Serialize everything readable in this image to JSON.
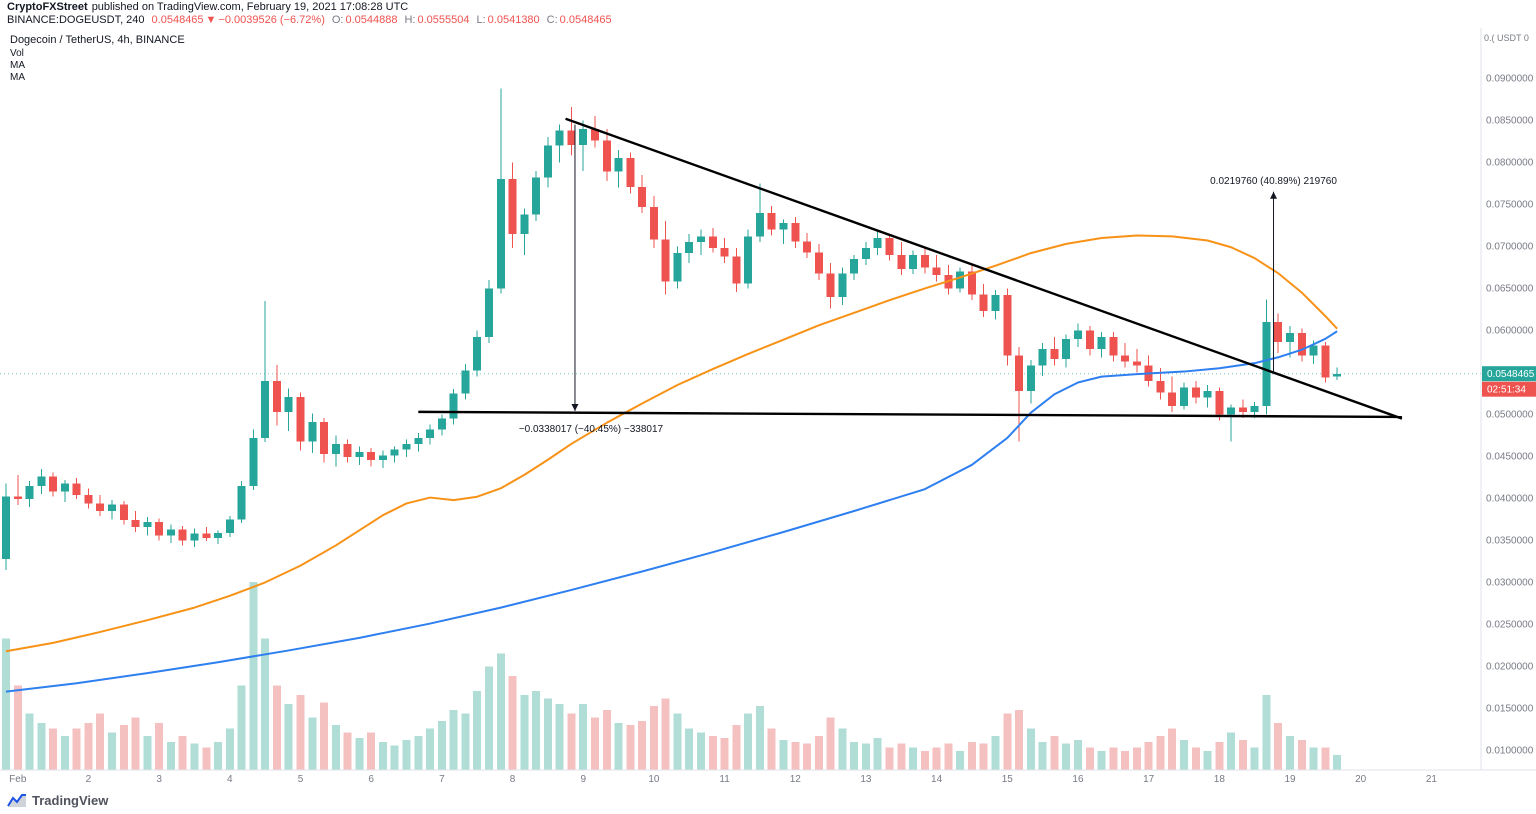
{
  "meta": {
    "author": "CryptoFXStreet",
    "published": "published on TradingView.com, February 19, 2021 17:08:28 UTC"
  },
  "header": {
    "symbol": "BINANCE:DOGEUSDT, 240",
    "last": "0.0548465",
    "dir": "▼",
    "change": "−0.0039526 (−6.72%)",
    "o_label": "O:",
    "o": "0.0544888",
    "h_label": "H:",
    "h": "0.0555504",
    "l_label": "L:",
    "l": "0.0541380",
    "c_label": "C:",
    "c": "0.0548465"
  },
  "legend": {
    "title": "Dogecoin / TetherUS, 4h, BINANCE",
    "vol": "Vol",
    "ma1": "MA",
    "ma2": "MA"
  },
  "price_marker": {
    "value": "0.0548465",
    "countdown": "02:51:34"
  },
  "axis": {
    "note": "0.( USDT 0",
    "price_ticks": [
      "0.0900000",
      "0.0850000",
      "0.0800000",
      "0.0750000",
      "0.0700000",
      "0.0650000",
      "0.0600000",
      "0.0500000",
      "0.0450000",
      "0.0400000",
      "0.0350000",
      "0.0300000",
      "0.0250000",
      "0.0200000",
      "0.0150000",
      "0.0100000"
    ],
    "time_labels": [
      [
        "Feb",
        1
      ],
      [
        "2",
        7
      ],
      [
        "3",
        13
      ],
      [
        "4",
        19
      ],
      [
        "5",
        25
      ],
      [
        "6",
        31
      ],
      [
        "7",
        37
      ],
      [
        "8",
        43
      ],
      [
        "9",
        49
      ],
      [
        "10",
        55
      ],
      [
        "11",
        61
      ],
      [
        "12",
        67
      ],
      [
        "13",
        73
      ],
      [
        "14",
        79
      ],
      [
        "15",
        85
      ],
      [
        "16",
        91
      ],
      [
        "17",
        97
      ],
      [
        "18",
        103
      ],
      [
        "19",
        109
      ],
      [
        "20",
        115
      ],
      [
        "21",
        121
      ]
    ]
  },
  "footer": {
    "brand": "TradingView"
  },
  "colors": {
    "up": "#26a69a",
    "down": "#ef5350",
    "vol_up": "#b0ddd6",
    "vol_down": "#f5c1c0",
    "ma_orange": "#f89217",
    "ma_blue": "#2e7ff0",
    "trendline": "#000000",
    "price_line": "#26a69a",
    "axis_text": "#787b86",
    "badge_price": "#26a69a",
    "badge_countdown": "#ef5350"
  },
  "chart_data": {
    "type": "candlestick",
    "title": "Dogecoin / TetherUS, 4h, BINANCE",
    "exchange": "BINANCE",
    "interval": "4h",
    "ylim": [
      0.0077,
      0.096
    ],
    "slots_per_day": 6,
    "current_price": 0.0548465,
    "last_candle": {
      "open": 0.0544888,
      "high": 0.0555504,
      "low": 0.054138,
      "close": 0.0548465
    },
    "columns": [
      "open",
      "high",
      "low",
      "close",
      "volume_rel"
    ],
    "candles": [
      [
        0.0328,
        0.0418,
        0.0315,
        0.0402,
        70
      ],
      [
        0.0402,
        0.0428,
        0.0392,
        0.0399,
        45
      ],
      [
        0.0399,
        0.0421,
        0.039,
        0.0415,
        30
      ],
      [
        0.0415,
        0.0435,
        0.0405,
        0.0426,
        25
      ],
      [
        0.0426,
        0.0431,
        0.0402,
        0.0408,
        22
      ],
      [
        0.0408,
        0.0422,
        0.0396,
        0.0418,
        18
      ],
      [
        0.0418,
        0.0424,
        0.0399,
        0.0404,
        22
      ],
      [
        0.0404,
        0.0412,
        0.0388,
        0.0394,
        25
      ],
      [
        0.0394,
        0.0404,
        0.0379,
        0.0385,
        30
      ],
      [
        0.0385,
        0.0398,
        0.0375,
        0.0393,
        20
      ],
      [
        0.0393,
        0.0397,
        0.0369,
        0.0374,
        24
      ],
      [
        0.0374,
        0.0385,
        0.036,
        0.0366,
        28
      ],
      [
        0.0366,
        0.0378,
        0.0356,
        0.0372,
        18
      ],
      [
        0.0372,
        0.0376,
        0.035,
        0.0356,
        25
      ],
      [
        0.0356,
        0.0369,
        0.0347,
        0.0363,
        15
      ],
      [
        0.0363,
        0.0367,
        0.0344,
        0.035,
        18
      ],
      [
        0.035,
        0.0364,
        0.0342,
        0.0358,
        14
      ],
      [
        0.0358,
        0.0366,
        0.0349,
        0.0353,
        12
      ],
      [
        0.0353,
        0.0362,
        0.0346,
        0.0359,
        15
      ],
      [
        0.0359,
        0.0379,
        0.0354,
        0.0375,
        22
      ],
      [
        0.0375,
        0.0421,
        0.0371,
        0.0415,
        45
      ],
      [
        0.0415,
        0.0482,
        0.041,
        0.0472,
        100
      ],
      [
        0.0472,
        0.0635,
        0.0467,
        0.054,
        70
      ],
      [
        0.054,
        0.0559,
        0.0487,
        0.0503,
        45
      ],
      [
        0.0503,
        0.0531,
        0.048,
        0.0521,
        35
      ],
      [
        0.0521,
        0.0526,
        0.0457,
        0.0468,
        40
      ],
      [
        0.0468,
        0.0501,
        0.0454,
        0.0491,
        28
      ],
      [
        0.0491,
        0.0496,
        0.0443,
        0.0453,
        36
      ],
      [
        0.0453,
        0.0475,
        0.0438,
        0.0465,
        24
      ],
      [
        0.0465,
        0.047,
        0.0443,
        0.0449,
        20
      ],
      [
        0.0449,
        0.0462,
        0.044,
        0.0455,
        17
      ],
      [
        0.0455,
        0.046,
        0.0438,
        0.0446,
        20
      ],
      [
        0.0446,
        0.0457,
        0.0436,
        0.0451,
        15
      ],
      [
        0.0451,
        0.0462,
        0.0443,
        0.0458,
        13
      ],
      [
        0.0458,
        0.047,
        0.0449,
        0.0465,
        16
      ],
      [
        0.0465,
        0.0478,
        0.0456,
        0.0472,
        18
      ],
      [
        0.0472,
        0.0488,
        0.0464,
        0.0482,
        22
      ],
      [
        0.0482,
        0.05,
        0.0475,
        0.0495,
        26
      ],
      [
        0.0495,
        0.053,
        0.0488,
        0.0525,
        32
      ],
      [
        0.0525,
        0.056,
        0.0518,
        0.0552,
        30
      ],
      [
        0.0552,
        0.06,
        0.0545,
        0.0592,
        42
      ],
      [
        0.0592,
        0.066,
        0.0585,
        0.065,
        55
      ],
      [
        0.065,
        0.0888,
        0.0644,
        0.078,
        62
      ],
      [
        0.078,
        0.08,
        0.0698,
        0.0715,
        50
      ],
      [
        0.0715,
        0.0745,
        0.069,
        0.0738,
        40
      ],
      [
        0.0738,
        0.079,
        0.073,
        0.0782,
        42
      ],
      [
        0.0782,
        0.083,
        0.077,
        0.082,
        38
      ],
      [
        0.082,
        0.0845,
        0.08,
        0.0838,
        35
      ],
      [
        0.0838,
        0.0866,
        0.0808,
        0.0821,
        30
      ],
      [
        0.0821,
        0.085,
        0.079,
        0.084,
        35
      ],
      [
        0.084,
        0.0855,
        0.0818,
        0.0826,
        28
      ],
      [
        0.0826,
        0.084,
        0.0778,
        0.0789,
        32
      ],
      [
        0.0789,
        0.0815,
        0.077,
        0.0805,
        25
      ],
      [
        0.0805,
        0.0812,
        0.0763,
        0.0771,
        24
      ],
      [
        0.0771,
        0.0785,
        0.074,
        0.0747,
        26
      ],
      [
        0.0747,
        0.076,
        0.0698,
        0.0708,
        34
      ],
      [
        0.0708,
        0.073,
        0.0643,
        0.0658,
        38
      ],
      [
        0.0658,
        0.07,
        0.065,
        0.0692,
        30
      ],
      [
        0.0692,
        0.0715,
        0.068,
        0.0705,
        22
      ],
      [
        0.0705,
        0.072,
        0.069,
        0.0712,
        20
      ],
      [
        0.0712,
        0.0722,
        0.0693,
        0.0698,
        18
      ],
      [
        0.0698,
        0.071,
        0.068,
        0.0688,
        17
      ],
      [
        0.0688,
        0.0698,
        0.0646,
        0.0656,
        24
      ],
      [
        0.0656,
        0.072,
        0.065,
        0.0712,
        30
      ],
      [
        0.0712,
        0.0775,
        0.0705,
        0.074,
        34
      ],
      [
        0.074,
        0.0748,
        0.0713,
        0.072,
        22
      ],
      [
        0.072,
        0.0732,
        0.0703,
        0.0728,
        16
      ],
      [
        0.0728,
        0.0735,
        0.0698,
        0.0706,
        15
      ],
      [
        0.0706,
        0.0716,
        0.0686,
        0.0693,
        14
      ],
      [
        0.0693,
        0.0703,
        0.066,
        0.0668,
        18
      ],
      [
        0.0668,
        0.068,
        0.0626,
        0.064,
        28
      ],
      [
        0.064,
        0.0675,
        0.063,
        0.0668,
        22
      ],
      [
        0.0668,
        0.069,
        0.066,
        0.0685,
        15
      ],
      [
        0.0685,
        0.0705,
        0.0678,
        0.0698,
        14
      ],
      [
        0.0698,
        0.0718,
        0.069,
        0.071,
        17
      ],
      [
        0.071,
        0.0715,
        0.0683,
        0.069,
        12
      ],
      [
        0.069,
        0.0705,
        0.0666,
        0.0673,
        14
      ],
      [
        0.0673,
        0.0695,
        0.0667,
        0.069,
        12
      ],
      [
        0.069,
        0.0698,
        0.0668,
        0.0675,
        10
      ],
      [
        0.0675,
        0.069,
        0.0658,
        0.0666,
        12
      ],
      [
        0.0666,
        0.0678,
        0.0643,
        0.065,
        14
      ],
      [
        0.065,
        0.0675,
        0.0645,
        0.067,
        10
      ],
      [
        0.067,
        0.0678,
        0.0636,
        0.0643,
        15
      ],
      [
        0.0643,
        0.0655,
        0.0616,
        0.0623,
        14
      ],
      [
        0.0623,
        0.0648,
        0.0613,
        0.0642,
        18
      ],
      [
        0.0642,
        0.065,
        0.0558,
        0.057,
        30
      ],
      [
        0.057,
        0.058,
        0.0468,
        0.0528,
        32
      ],
      [
        0.0528,
        0.0565,
        0.0513,
        0.0558,
        22
      ],
      [
        0.0558,
        0.0585,
        0.0546,
        0.0578,
        15
      ],
      [
        0.0578,
        0.0592,
        0.0558,
        0.0566,
        18
      ],
      [
        0.0566,
        0.0595,
        0.0556,
        0.059,
        14
      ],
      [
        0.059,
        0.0608,
        0.058,
        0.06,
        16
      ],
      [
        0.06,
        0.0605,
        0.057,
        0.0578,
        12
      ],
      [
        0.0578,
        0.0598,
        0.0568,
        0.0592,
        10
      ],
      [
        0.0592,
        0.0598,
        0.0563,
        0.057,
        12
      ],
      [
        0.057,
        0.0585,
        0.0556,
        0.0563,
        10
      ],
      [
        0.0563,
        0.0578,
        0.055,
        0.0558,
        12
      ],
      [
        0.0558,
        0.057,
        0.0533,
        0.054,
        15
      ],
      [
        0.054,
        0.0555,
        0.0518,
        0.0526,
        18
      ],
      [
        0.0526,
        0.0545,
        0.0503,
        0.051,
        22
      ],
      [
        0.051,
        0.0538,
        0.0506,
        0.0532,
        16
      ],
      [
        0.0532,
        0.054,
        0.0513,
        0.052,
        12
      ],
      [
        0.052,
        0.0535,
        0.0508,
        0.0528,
        10
      ],
      [
        0.0528,
        0.0532,
        0.0493,
        0.05,
        15
      ],
      [
        0.05,
        0.0512,
        0.0468,
        0.0508,
        20
      ],
      [
        0.0508,
        0.0518,
        0.0496,
        0.0503,
        16
      ],
      [
        0.0503,
        0.0515,
        0.0496,
        0.051,
        12
      ],
      [
        0.051,
        0.0637,
        0.05,
        0.061,
        40
      ],
      [
        0.061,
        0.062,
        0.0573,
        0.0586,
        25
      ],
      [
        0.0586,
        0.0605,
        0.0568,
        0.0597,
        18
      ],
      [
        0.0597,
        0.0602,
        0.0563,
        0.057,
        16
      ],
      [
        0.057,
        0.0588,
        0.056,
        0.0582,
        12
      ],
      [
        0.0582,
        0.0586,
        0.0538,
        0.0544,
        12
      ],
      [
        0.0545,
        0.0556,
        0.0541,
        0.0548,
        8
      ]
    ],
    "ma_orange": [
      [
        0,
        0.0218
      ],
      [
        4,
        0.0228
      ],
      [
        8,
        0.0241
      ],
      [
        12,
        0.0255
      ],
      [
        16,
        0.027
      ],
      [
        19,
        0.0284
      ],
      [
        22,
        0.03
      ],
      [
        25,
        0.032
      ],
      [
        28,
        0.0344
      ],
      [
        30,
        0.0362
      ],
      [
        32,
        0.038
      ],
      [
        34,
        0.0394
      ],
      [
        36,
        0.0401
      ],
      [
        38,
        0.0398
      ],
      [
        40,
        0.0402
      ],
      [
        42,
        0.0412
      ],
      [
        44,
        0.0428
      ],
      [
        46,
        0.0446
      ],
      [
        48,
        0.0465
      ],
      [
        51,
        0.049
      ],
      [
        54,
        0.0513
      ],
      [
        57,
        0.0535
      ],
      [
        60,
        0.0554
      ],
      [
        63,
        0.0572
      ],
      [
        66,
        0.0589
      ],
      [
        69,
        0.0606
      ],
      [
        72,
        0.0621
      ],
      [
        75,
        0.0636
      ],
      [
        78,
        0.065
      ],
      [
        81,
        0.0663
      ],
      [
        84,
        0.0677
      ],
      [
        87,
        0.0692
      ],
      [
        90,
        0.0703
      ],
      [
        93,
        0.071
      ],
      [
        96,
        0.0713
      ],
      [
        99,
        0.0712
      ],
      [
        102,
        0.0707
      ],
      [
        104,
        0.0699
      ],
      [
        106,
        0.0686
      ],
      [
        108,
        0.0668
      ],
      [
        110,
        0.0645
      ],
      [
        112,
        0.0617
      ],
      [
        113,
        0.0602
      ]
    ],
    "ma_blue": [
      [
        0,
        0.017
      ],
      [
        6,
        0.018
      ],
      [
        12,
        0.0192
      ],
      [
        18,
        0.0205
      ],
      [
        24,
        0.0219
      ],
      [
        30,
        0.0234
      ],
      [
        36,
        0.0251
      ],
      [
        42,
        0.027
      ],
      [
        48,
        0.0291
      ],
      [
        54,
        0.0313
      ],
      [
        60,
        0.0336
      ],
      [
        66,
        0.036
      ],
      [
        72,
        0.0385
      ],
      [
        78,
        0.0411
      ],
      [
        82,
        0.044
      ],
      [
        85,
        0.0472
      ],
      [
        87,
        0.0502
      ],
      [
        89,
        0.0524
      ],
      [
        91,
        0.0538
      ],
      [
        93,
        0.0545
      ],
      [
        96,
        0.0548
      ],
      [
        100,
        0.0551
      ],
      [
        103,
        0.0555
      ],
      [
        106,
        0.0561
      ],
      [
        108,
        0.0568
      ],
      [
        110,
        0.0577
      ],
      [
        112,
        0.059
      ],
      [
        113,
        0.0599
      ]
    ],
    "trendlines": [
      {
        "name": "descending-resistance",
        "from": [
          47.5,
          0.0852
        ],
        "to": [
          118.5,
          0.0495
        ]
      },
      {
        "name": "horizontal-support",
        "from": [
          35,
          0.0503
        ],
        "to": [
          118.5,
          0.0497
        ]
      }
    ],
    "measures": [
      {
        "direction": "down",
        "x_index": 48.3,
        "from_price": 0.0845,
        "to_price": 0.0504,
        "label": "−0.0338017 (−40.45%) −338017"
      },
      {
        "direction": "up",
        "x_index": 107.6,
        "from_price": 0.0548,
        "to_price": 0.0765,
        "label": "0.0219760 (40.89%) 219760"
      }
    ]
  }
}
